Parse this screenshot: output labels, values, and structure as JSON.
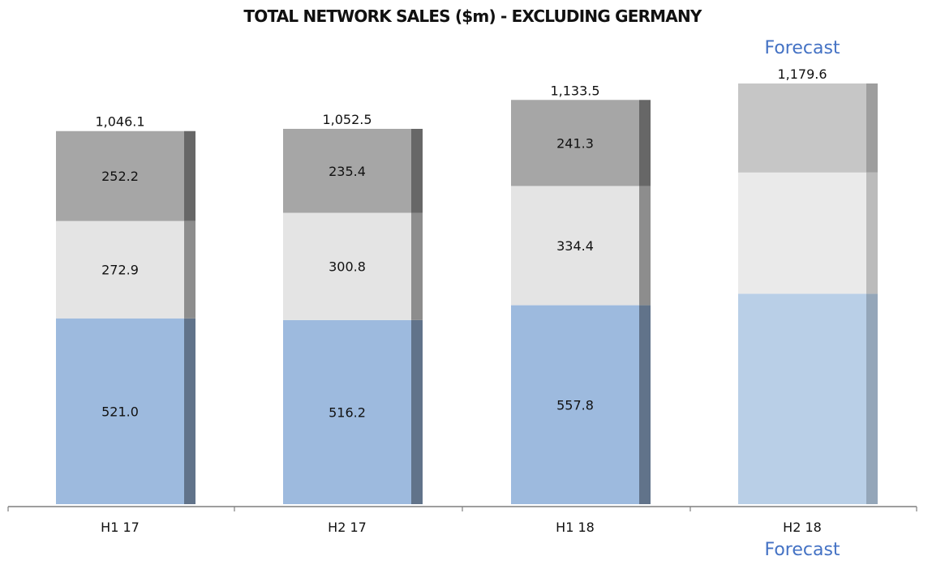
{
  "chart_data": {
    "type": "bar",
    "stacked": true,
    "title": "TOTAL NETWORK SALES ($m) - EXCLUDING GERMANY",
    "xlabel": "",
    "ylabel": "",
    "ylim": [
      0,
      1179.6
    ],
    "grid": false,
    "legend": "none",
    "categories": [
      "H1 17",
      "H2 17",
      "H1 18",
      "H2 18"
    ],
    "totals": [
      1046.1,
      1052.5,
      1133.5,
      1179.6
    ],
    "total_labels": [
      "1,046.1",
      "1,052.5",
      "1,133.5",
      "1,179.6"
    ],
    "series": [
      {
        "values": [
          521.0,
          516.2,
          557.8,
          590.0
        ],
        "labels": [
          "521.0",
          "516.2",
          "557.8",
          ""
        ],
        "color": "#9dbade",
        "forecast_color": "#b9cfe7"
      },
      {
        "values": [
          272.9,
          300.8,
          334.4,
          340.0
        ],
        "labels": [
          "272.9",
          "300.8",
          "334.4",
          ""
        ],
        "color": "#e4e4e4",
        "forecast_color": "#eaeaea"
      },
      {
        "values": [
          252.2,
          235.4,
          241.3,
          249.6
        ],
        "labels": [
          "252.2",
          "235.4",
          "241.3",
          ""
        ],
        "color": "#a6a6a6",
        "forecast_color": "#c6c6c6"
      }
    ],
    "forecast": {
      "category_index": 3,
      "label_top": "Forecast",
      "label_bottom": "Forecast"
    }
  }
}
